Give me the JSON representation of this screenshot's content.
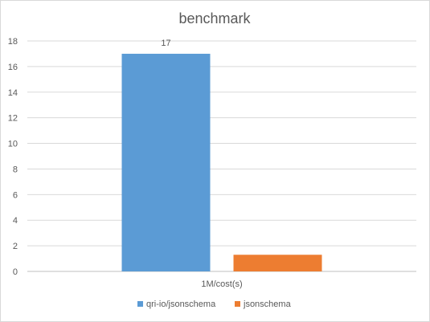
{
  "chart_data": {
    "type": "bar",
    "title": "benchmark",
    "categories": [
      "1M/cost(s)"
    ],
    "series": [
      {
        "name": "qri-io/jsonschema",
        "values": [
          17
        ],
        "color": "#5b9bd5",
        "data_label": "17"
      },
      {
        "name": "jsonschema",
        "values": [
          1.3
        ],
        "color": "#ed7d31"
      }
    ],
    "ylim": [
      0,
      18
    ],
    "yticks": [
      0,
      2,
      4,
      6,
      8,
      10,
      12,
      14,
      16,
      18
    ],
    "grid": true,
    "legend_position": "bottom",
    "xlabel": "",
    "ylabel": ""
  }
}
